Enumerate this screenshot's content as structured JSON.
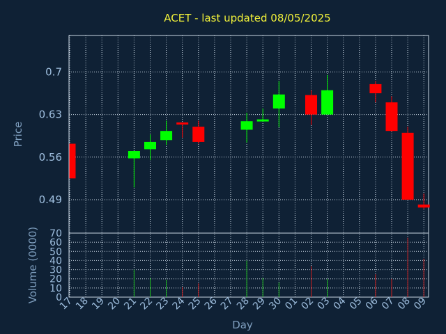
{
  "chart_data": {
    "type": "candlestick",
    "title": "ACET - last updated 08/05/2025",
    "price_axis": {
      "label": "Price",
      "ylim": [
        0.435,
        0.76
      ],
      "ticks": [
        0.49,
        0.56,
        0.63,
        0.7
      ]
    },
    "volume_axis": {
      "label": "Volume (0000)",
      "ylim": [
        0,
        70
      ],
      "ticks": [
        0,
        10,
        20,
        30,
        40,
        50,
        60,
        70
      ]
    },
    "x_axis": {
      "label": "Day",
      "ticks": [
        "17",
        "18",
        "19",
        "20",
        "21",
        "22",
        "23",
        "24",
        "25",
        "26",
        "27",
        "28",
        "29",
        "30",
        "01",
        "02",
        "03",
        "04",
        "05",
        "06",
        "07",
        "08",
        "09"
      ]
    },
    "grid": true,
    "colors": {
      "up": "#00ff00",
      "down": "#ff0000",
      "title": "#f2f23a"
    },
    "candles": [
      {
        "x": 17,
        "open": 0.582,
        "high": 0.582,
        "low": 0.525,
        "close": 0.525,
        "volume": 0
      },
      {
        "x": 21,
        "open": 0.558,
        "high": 0.57,
        "low": 0.51,
        "close": 0.57,
        "volume": 30
      },
      {
        "x": 22,
        "open": 0.573,
        "high": 0.597,
        "low": 0.555,
        "close": 0.585,
        "volume": 21
      },
      {
        "x": 23,
        "open": 0.588,
        "high": 0.62,
        "low": 0.58,
        "close": 0.603,
        "volume": 19
      },
      {
        "x": 24,
        "open": 0.617,
        "high": 0.617,
        "low": 0.592,
        "close": 0.614,
        "volume": 11
      },
      {
        "x": 25,
        "open": 0.61,
        "high": 0.62,
        "low": 0.582,
        "close": 0.585,
        "volume": 15
      },
      {
        "x": 28,
        "open": 0.605,
        "high": 0.633,
        "low": 0.584,
        "close": 0.619,
        "volume": 40
      },
      {
        "x": 29,
        "open": 0.619,
        "high": 0.64,
        "low": 0.619,
        "close": 0.622,
        "volume": 21
      },
      {
        "x": 30,
        "open": 0.64,
        "high": 0.685,
        "low": 0.609,
        "close": 0.663,
        "volume": 16
      },
      {
        "x": 32,
        "open": 0.662,
        "high": 0.67,
        "low": 0.613,
        "close": 0.63,
        "volume": 34
      },
      {
        "x": 33,
        "open": 0.63,
        "high": 0.695,
        "low": 0.63,
        "close": 0.67,
        "volume": 20
      },
      {
        "x": 36,
        "open": 0.68,
        "high": 0.685,
        "low": 0.65,
        "close": 0.665,
        "volume": 25
      },
      {
        "x": 37,
        "open": 0.65,
        "high": 0.66,
        "low": 0.602,
        "close": 0.603,
        "volume": 20
      },
      {
        "x": 38,
        "open": 0.6,
        "high": 0.61,
        "low": 0.49,
        "close": 0.49,
        "volume": 65
      },
      {
        "x": 39,
        "open": 0.482,
        "high": 0.5,
        "low": 0.475,
        "close": 0.477,
        "volume": 42
      }
    ]
  }
}
